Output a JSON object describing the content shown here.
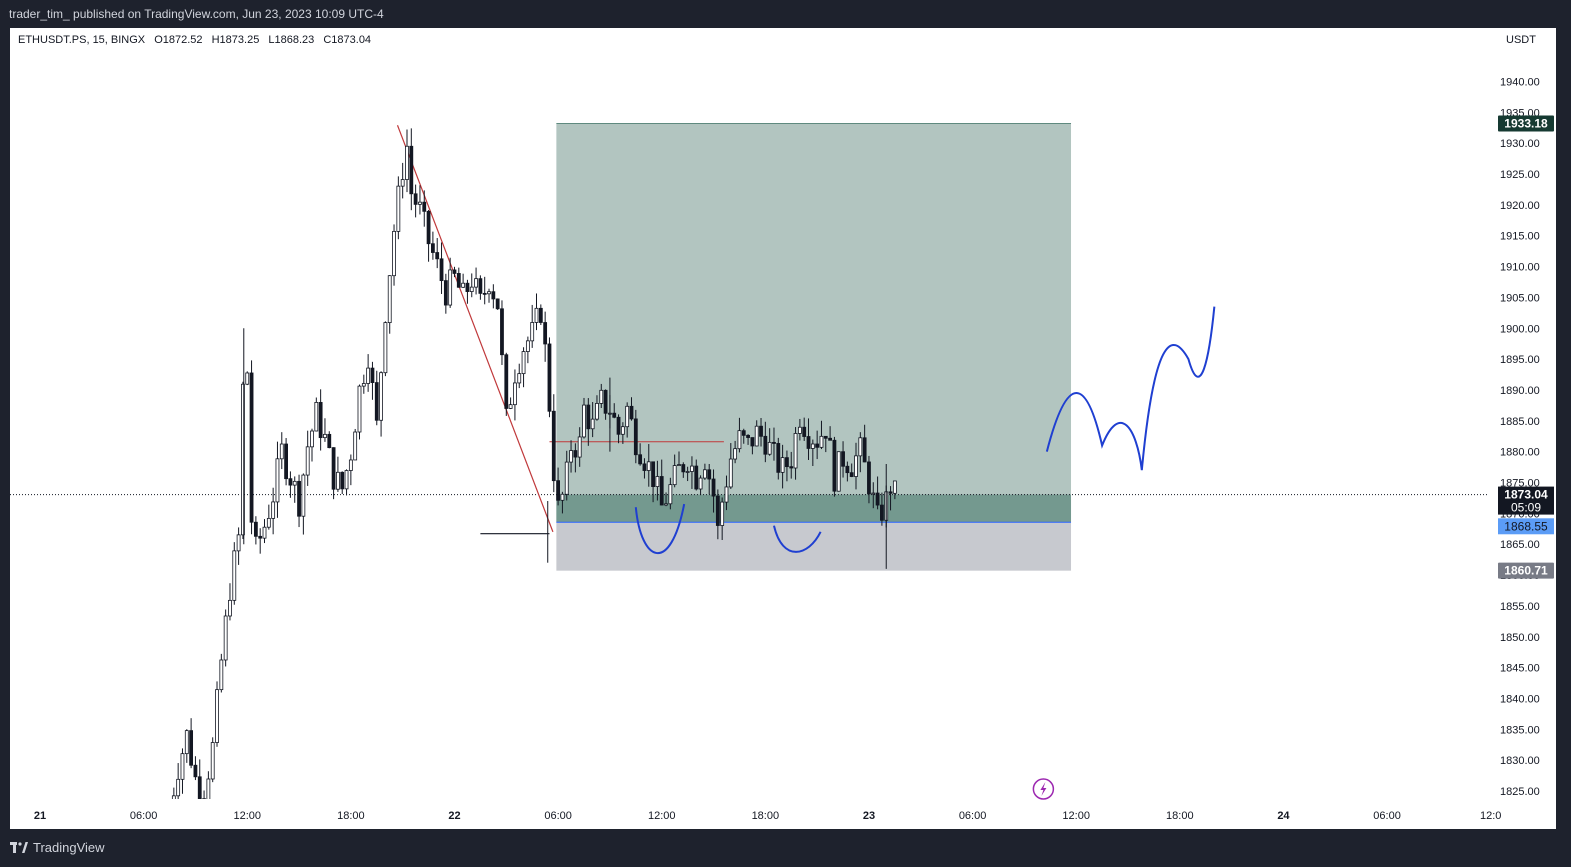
{
  "header": {
    "publisher_line": "trader_tim_ published on TradingView.com, Jun 23, 2023 10:09 UTC-4"
  },
  "legend": {
    "symbol": "ETHUSDT.PS, 15, BINGX",
    "open": "O1872.52",
    "high": "H1873.25",
    "low": "L1868.23",
    "close": "C1873.04"
  },
  "footer": {
    "brand": "TradingView"
  },
  "colors": {
    "up": "#131722",
    "down": "#131722",
    "trendline": "#c0393b",
    "annotation": "#1f3fd1",
    "target_zone": "#9fb6b0",
    "stop_zone": "#b4b7bf",
    "entry_line": "#2962ff"
  },
  "chart_data": {
    "type": "candlestick",
    "currency": "USDT",
    "y_ticks": [
      "1825.00",
      "1830.00",
      "1835.00",
      "1840.00",
      "1845.00",
      "1850.00",
      "1855.00",
      "1860.00",
      "1865.00",
      "1870.00",
      "1875.00",
      "1880.00",
      "1885.00",
      "1890.00",
      "1895.00",
      "1900.00",
      "1905.00",
      "1910.00",
      "1915.00",
      "1920.00",
      "1925.00",
      "1930.00",
      "1935.00",
      "1940.00"
    ],
    "ylim": [
      1823.5,
      1946.6
    ],
    "x_ticks": [
      "21",
      "06:00",
      "12:00",
      "18:00",
      "22",
      "06:00",
      "12:00",
      "18:00",
      "23",
      "06:00",
      "12:00",
      "18:00",
      "24",
      "06:00",
      "12:0"
    ],
    "price_labels": {
      "target": "1933.18",
      "last": "1873.04",
      "countdown": "05:09",
      "entry": "1868.55",
      "stop": "1860.71"
    },
    "position": {
      "entry": 1868.55,
      "target": 1933.18,
      "stop": 1860.71
    },
    "trendline": {
      "from": [
        20.7,
        1932.9
      ],
      "to": [
        29.7,
        1867.0
      ]
    },
    "candle_anchors": [
      [
        7.5,
        1822
      ],
      [
        8.0,
        1829
      ],
      [
        8.5,
        1834
      ],
      [
        9.0,
        1827
      ],
      [
        9.5,
        1825
      ],
      [
        10.0,
        1832
      ],
      [
        10.5,
        1846
      ],
      [
        11.0,
        1858
      ],
      [
        11.5,
        1866
      ],
      [
        11.8,
        1895
      ],
      [
        12.0,
        1893
      ],
      [
        12.2,
        1870
      ],
      [
        12.5,
        1864
      ],
      [
        13.0,
        1868
      ],
      [
        13.5,
        1873
      ],
      [
        14.0,
        1880
      ],
      [
        14.5,
        1876
      ],
      [
        15.0,
        1872
      ],
      [
        15.5,
        1881
      ],
      [
        16.0,
        1886
      ],
      [
        16.5,
        1882
      ],
      [
        17.0,
        1876
      ],
      [
        17.5,
        1874
      ],
      [
        18.0,
        1880
      ],
      [
        18.5,
        1890
      ],
      [
        19.0,
        1896
      ],
      [
        19.5,
        1884
      ],
      [
        20.0,
        1903
      ],
      [
        20.5,
        1916
      ],
      [
        21.0,
        1926
      ],
      [
        21.2,
        1931
      ],
      [
        21.5,
        1922
      ],
      [
        22.0,
        1919
      ],
      [
        22.5,
        1914
      ],
      [
        23.0,
        1910
      ],
      [
        23.5,
        1906
      ],
      [
        24.0,
        1908
      ],
      [
        24.5,
        1905
      ],
      [
        25.0,
        1908
      ],
      [
        25.5,
        1904
      ],
      [
        26.0,
        1908
      ],
      [
        26.5,
        1904
      ],
      [
        27.0,
        1885
      ],
      [
        27.5,
        1893
      ],
      [
        28.0,
        1897
      ],
      [
        28.5,
        1899
      ],
      [
        29.0,
        1903
      ],
      [
        29.3,
        1895
      ],
      [
        29.6,
        1884
      ],
      [
        29.9,
        1870
      ],
      [
        30.2,
        1872
      ],
      [
        30.5,
        1876
      ],
      [
        30.8,
        1882
      ],
      [
        31.2,
        1880
      ],
      [
        31.5,
        1887
      ],
      [
        32.0,
        1884
      ],
      [
        32.5,
        1888
      ],
      [
        33.0,
        1887
      ],
      [
        33.5,
        1883
      ],
      [
        34.0,
        1887
      ],
      [
        34.5,
        1882
      ],
      [
        35.0,
        1879
      ],
      [
        35.5,
        1876
      ],
      [
        36.0,
        1871
      ],
      [
        36.5,
        1874
      ],
      [
        37.0,
        1877
      ],
      [
        37.5,
        1879
      ],
      [
        38.0,
        1876
      ],
      [
        38.5,
        1879
      ],
      [
        39.0,
        1873
      ],
      [
        39.3,
        1866
      ],
      [
        39.5,
        1872
      ],
      [
        40.0,
        1879
      ],
      [
        40.5,
        1882
      ],
      [
        41.0,
        1881
      ],
      [
        41.5,
        1883
      ],
      [
        42.0,
        1882
      ],
      [
        42.5,
        1879
      ],
      [
        43.0,
        1877
      ],
      [
        43.5,
        1879
      ],
      [
        44.0,
        1886
      ],
      [
        44.5,
        1883
      ],
      [
        45.0,
        1882
      ],
      [
        45.5,
        1884
      ],
      [
        46.0,
        1876
      ],
      [
        46.5,
        1879
      ],
      [
        47.0,
        1878
      ],
      [
        47.5,
        1880
      ],
      [
        48.0,
        1875
      ],
      [
        48.5,
        1869
      ],
      [
        49.0,
        1872
      ],
      [
        49.3,
        1875
      ],
      [
        49.5,
        1873
      ]
    ],
    "last_price": 1873.04
  }
}
